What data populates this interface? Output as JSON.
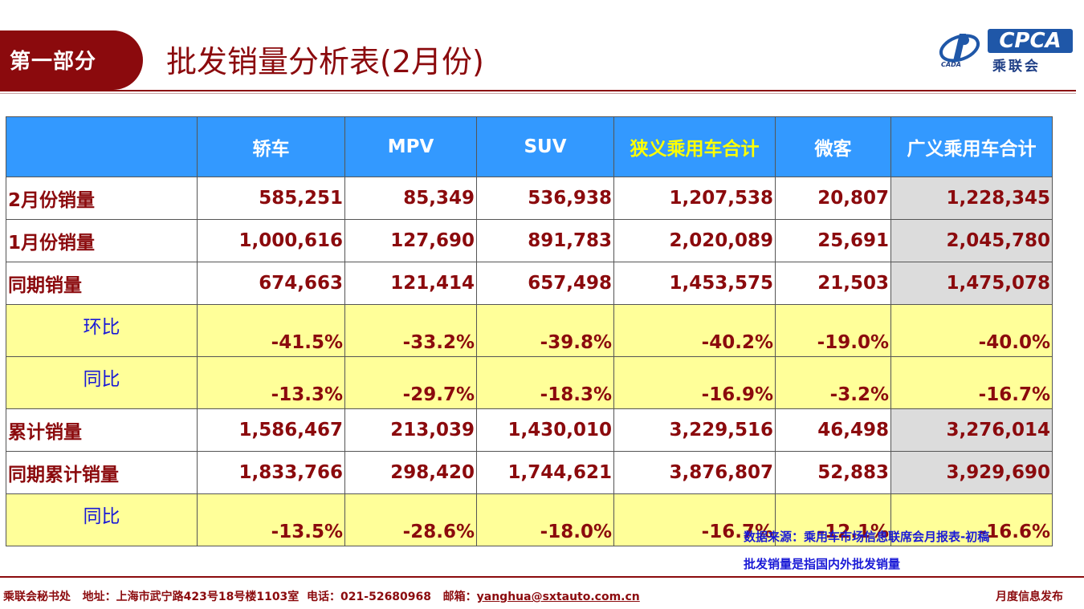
{
  "header": {
    "section_label": "第一部分",
    "title": "批发销量分析表(2月份)",
    "logo_brand": "CPCA",
    "logo_cn": "乘联会",
    "logo_small": "CADA"
  },
  "table": {
    "columns": [
      "",
      "轿车",
      "MPV",
      "SUV",
      "狭义乘用车合计",
      "微客",
      "广义乘用车合计"
    ],
    "rows": [
      {
        "label": "2月份销量",
        "values": [
          "585,251",
          "85,349",
          "536,938",
          "1,207,538",
          "20,807",
          "1,228,345"
        ]
      },
      {
        "label": "1月份销量",
        "values": [
          "1,000,616",
          "127,690",
          "891,783",
          "2,020,089",
          "25,691",
          "2,045,780"
        ]
      },
      {
        "label": "同期销量",
        "values": [
          "674,663",
          "121,414",
          "657,498",
          "1,453,575",
          "21,503",
          "1,475,078"
        ]
      },
      {
        "label": "环比",
        "values": [
          "-41.5%",
          "-33.2%",
          "-39.8%",
          "-40.2%",
          "-19.0%",
          "-40.0%"
        ]
      },
      {
        "label": "同比",
        "values": [
          "-13.3%",
          "-29.7%",
          "-18.3%",
          "-16.9%",
          "-3.2%",
          "-16.7%"
        ]
      },
      {
        "label": "累计销量",
        "values": [
          "1,586,467",
          "213,039",
          "1,430,010",
          "3,229,516",
          "46,498",
          "3,276,014"
        ]
      },
      {
        "label": "同期累计销量",
        "values": [
          "1,833,766",
          "298,420",
          "1,744,621",
          "3,876,807",
          "52,883",
          "3,929,690"
        ]
      },
      {
        "label": "同比",
        "values": [
          "-13.5%",
          "-28.6%",
          "-18.0%",
          "-16.7%",
          "-12.1%",
          "-16.6%"
        ]
      }
    ]
  },
  "notes": {
    "source": "数据来源：乘用车市场信息联席会月报表-初稿",
    "definition": "批发销量是指国内外批发销量"
  },
  "footer": {
    "org": "乘联会秘书处",
    "address": "地址：上海市武宁路423号18号楼1103室",
    "phone": "电话：021-52680968",
    "email_label": "邮箱：",
    "email": "yanghua@sxtauto.com.cn",
    "right": "月度信息发布"
  },
  "colors": {
    "brand_red": "#8b0a0d",
    "header_blue": "#3399ff",
    "ratio_yellow": "#ffff99",
    "total_gray": "#dcdcdc",
    "note_blue": "#1a1ad6"
  }
}
